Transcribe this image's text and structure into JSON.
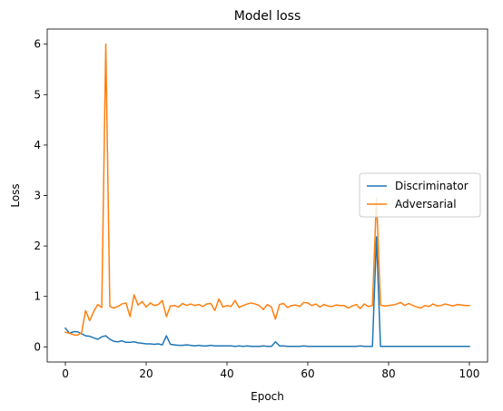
{
  "chart_data": {
    "type": "line",
    "title": "Model loss",
    "xlabel": "Epoch",
    "ylabel": "Loss",
    "xlim": [
      -4.5,
      104.5
    ],
    "ylim": [
      -0.3,
      6.3
    ],
    "xticks": [
      0,
      20,
      40,
      60,
      80,
      100
    ],
    "yticks": [
      0,
      1,
      2,
      3,
      4,
      5,
      6
    ],
    "grid": false,
    "legend_position": "center-right",
    "x": [
      0,
      1,
      2,
      3,
      4,
      5,
      6,
      7,
      8,
      9,
      10,
      11,
      12,
      13,
      14,
      15,
      16,
      17,
      18,
      19,
      20,
      21,
      22,
      23,
      24,
      25,
      26,
      27,
      28,
      29,
      30,
      31,
      32,
      33,
      34,
      35,
      36,
      37,
      38,
      39,
      40,
      41,
      42,
      43,
      44,
      45,
      46,
      47,
      48,
      49,
      50,
      51,
      52,
      53,
      54,
      55,
      56,
      57,
      58,
      59,
      60,
      61,
      62,
      63,
      64,
      65,
      66,
      67,
      68,
      69,
      70,
      71,
      72,
      73,
      74,
      75,
      76,
      77,
      78,
      79,
      80,
      81,
      82,
      83,
      84,
      85,
      86,
      87,
      88,
      89,
      90,
      91,
      92,
      93,
      94,
      95,
      96,
      97,
      98,
      99,
      100
    ],
    "series": [
      {
        "name": "Discriminator",
        "color": "#1f77b4",
        "values": [
          0.37,
          0.27,
          0.3,
          0.3,
          0.26,
          0.22,
          0.21,
          0.18,
          0.15,
          0.2,
          0.22,
          0.15,
          0.11,
          0.1,
          0.12,
          0.09,
          0.09,
          0.1,
          0.08,
          0.07,
          0.06,
          0.06,
          0.05,
          0.06,
          0.04,
          0.22,
          0.05,
          0.04,
          0.03,
          0.03,
          0.04,
          0.03,
          0.02,
          0.03,
          0.02,
          0.02,
          0.03,
          0.02,
          0.02,
          0.02,
          0.02,
          0.02,
          0.01,
          0.02,
          0.01,
          0.02,
          0.01,
          0.01,
          0.01,
          0.02,
          0.01,
          0.01,
          0.1,
          0.02,
          0.02,
          0.01,
          0.01,
          0.01,
          0.01,
          0.02,
          0.01,
          0.01,
          0.01,
          0.01,
          0.01,
          0.01,
          0.01,
          0.01,
          0.01,
          0.01,
          0.01,
          0.01,
          0.01,
          0.02,
          0.01,
          0.01,
          0.01,
          2.18,
          0.01,
          0.01,
          0.01,
          0.01,
          0.01,
          0.01,
          0.01,
          0.01,
          0.01,
          0.01,
          0.01,
          0.01,
          0.01,
          0.01,
          0.01,
          0.01,
          0.01,
          0.01,
          0.01,
          0.01,
          0.01,
          0.01,
          0.01
        ]
      },
      {
        "name": "Adversarial",
        "color": "#ff7f0e",
        "values": [
          0.29,
          0.27,
          0.24,
          0.23,
          0.28,
          0.72,
          0.52,
          0.7,
          0.84,
          0.78,
          6.0,
          0.8,
          0.77,
          0.8,
          0.85,
          0.87,
          0.6,
          1.03,
          0.83,
          0.9,
          0.79,
          0.87,
          0.82,
          0.84,
          0.92,
          0.6,
          0.81,
          0.82,
          0.79,
          0.86,
          0.82,
          0.85,
          0.82,
          0.84,
          0.8,
          0.85,
          0.86,
          0.72,
          0.95,
          0.79,
          0.82,
          0.8,
          0.92,
          0.78,
          0.82,
          0.85,
          0.87,
          0.85,
          0.82,
          0.74,
          0.84,
          0.79,
          0.55,
          0.84,
          0.86,
          0.78,
          0.82,
          0.83,
          0.8,
          0.88,
          0.87,
          0.82,
          0.85,
          0.79,
          0.84,
          0.81,
          0.8,
          0.83,
          0.82,
          0.82,
          0.77,
          0.81,
          0.84,
          0.76,
          0.85,
          0.8,
          0.82,
          2.95,
          0.83,
          0.81,
          0.82,
          0.83,
          0.85,
          0.88,
          0.82,
          0.86,
          0.82,
          0.79,
          0.77,
          0.82,
          0.8,
          0.85,
          0.81,
          0.82,
          0.85,
          0.83,
          0.81,
          0.84,
          0.83,
          0.82,
          0.82
        ]
      }
    ]
  }
}
